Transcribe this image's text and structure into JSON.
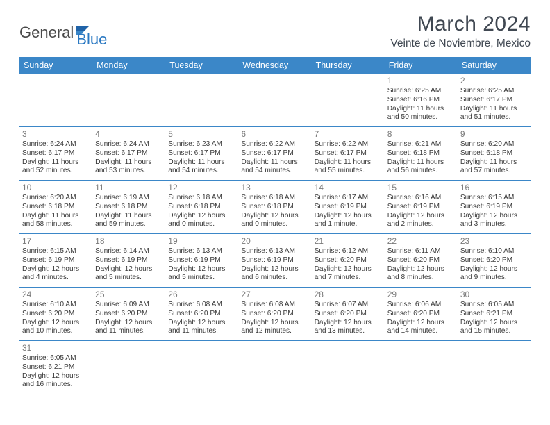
{
  "logo": {
    "text1": "General",
    "text2": "Blue"
  },
  "title": "March 2024",
  "location": "Veinte de Noviembre, Mexico",
  "colors": {
    "header_bg": "#3b87c8",
    "header_text": "#ffffff",
    "accent": "#2a78c2",
    "text_dark": "#404852",
    "cell_text": "#3a3a3a",
    "day_num": "#7a7a7a",
    "background": "#ffffff"
  },
  "day_names": [
    "Sunday",
    "Monday",
    "Tuesday",
    "Wednesday",
    "Thursday",
    "Friday",
    "Saturday"
  ],
  "weeks": [
    [
      null,
      null,
      null,
      null,
      null,
      {
        "n": "1",
        "sr": "Sunrise: 6:25 AM",
        "ss": "Sunset: 6:16 PM",
        "d1": "Daylight: 11 hours",
        "d2": "and 50 minutes."
      },
      {
        "n": "2",
        "sr": "Sunrise: 6:25 AM",
        "ss": "Sunset: 6:17 PM",
        "d1": "Daylight: 11 hours",
        "d2": "and 51 minutes."
      }
    ],
    [
      {
        "n": "3",
        "sr": "Sunrise: 6:24 AM",
        "ss": "Sunset: 6:17 PM",
        "d1": "Daylight: 11 hours",
        "d2": "and 52 minutes."
      },
      {
        "n": "4",
        "sr": "Sunrise: 6:24 AM",
        "ss": "Sunset: 6:17 PM",
        "d1": "Daylight: 11 hours",
        "d2": "and 53 minutes."
      },
      {
        "n": "5",
        "sr": "Sunrise: 6:23 AM",
        "ss": "Sunset: 6:17 PM",
        "d1": "Daylight: 11 hours",
        "d2": "and 54 minutes."
      },
      {
        "n": "6",
        "sr": "Sunrise: 6:22 AM",
        "ss": "Sunset: 6:17 PM",
        "d1": "Daylight: 11 hours",
        "d2": "and 54 minutes."
      },
      {
        "n": "7",
        "sr": "Sunrise: 6:22 AM",
        "ss": "Sunset: 6:17 PM",
        "d1": "Daylight: 11 hours",
        "d2": "and 55 minutes."
      },
      {
        "n": "8",
        "sr": "Sunrise: 6:21 AM",
        "ss": "Sunset: 6:18 PM",
        "d1": "Daylight: 11 hours",
        "d2": "and 56 minutes."
      },
      {
        "n": "9",
        "sr": "Sunrise: 6:20 AM",
        "ss": "Sunset: 6:18 PM",
        "d1": "Daylight: 11 hours",
        "d2": "and 57 minutes."
      }
    ],
    [
      {
        "n": "10",
        "sr": "Sunrise: 6:20 AM",
        "ss": "Sunset: 6:18 PM",
        "d1": "Daylight: 11 hours",
        "d2": "and 58 minutes."
      },
      {
        "n": "11",
        "sr": "Sunrise: 6:19 AM",
        "ss": "Sunset: 6:18 PM",
        "d1": "Daylight: 11 hours",
        "d2": "and 59 minutes."
      },
      {
        "n": "12",
        "sr": "Sunrise: 6:18 AM",
        "ss": "Sunset: 6:18 PM",
        "d1": "Daylight: 12 hours",
        "d2": "and 0 minutes."
      },
      {
        "n": "13",
        "sr": "Sunrise: 6:18 AM",
        "ss": "Sunset: 6:18 PM",
        "d1": "Daylight: 12 hours",
        "d2": "and 0 minutes."
      },
      {
        "n": "14",
        "sr": "Sunrise: 6:17 AM",
        "ss": "Sunset: 6:19 PM",
        "d1": "Daylight: 12 hours",
        "d2": "and 1 minute."
      },
      {
        "n": "15",
        "sr": "Sunrise: 6:16 AM",
        "ss": "Sunset: 6:19 PM",
        "d1": "Daylight: 12 hours",
        "d2": "and 2 minutes."
      },
      {
        "n": "16",
        "sr": "Sunrise: 6:15 AM",
        "ss": "Sunset: 6:19 PM",
        "d1": "Daylight: 12 hours",
        "d2": "and 3 minutes."
      }
    ],
    [
      {
        "n": "17",
        "sr": "Sunrise: 6:15 AM",
        "ss": "Sunset: 6:19 PM",
        "d1": "Daylight: 12 hours",
        "d2": "and 4 minutes."
      },
      {
        "n": "18",
        "sr": "Sunrise: 6:14 AM",
        "ss": "Sunset: 6:19 PM",
        "d1": "Daylight: 12 hours",
        "d2": "and 5 minutes."
      },
      {
        "n": "19",
        "sr": "Sunrise: 6:13 AM",
        "ss": "Sunset: 6:19 PM",
        "d1": "Daylight: 12 hours",
        "d2": "and 5 minutes."
      },
      {
        "n": "20",
        "sr": "Sunrise: 6:13 AM",
        "ss": "Sunset: 6:19 PM",
        "d1": "Daylight: 12 hours",
        "d2": "and 6 minutes."
      },
      {
        "n": "21",
        "sr": "Sunrise: 6:12 AM",
        "ss": "Sunset: 6:20 PM",
        "d1": "Daylight: 12 hours",
        "d2": "and 7 minutes."
      },
      {
        "n": "22",
        "sr": "Sunrise: 6:11 AM",
        "ss": "Sunset: 6:20 PM",
        "d1": "Daylight: 12 hours",
        "d2": "and 8 minutes."
      },
      {
        "n": "23",
        "sr": "Sunrise: 6:10 AM",
        "ss": "Sunset: 6:20 PM",
        "d1": "Daylight: 12 hours",
        "d2": "and 9 minutes."
      }
    ],
    [
      {
        "n": "24",
        "sr": "Sunrise: 6:10 AM",
        "ss": "Sunset: 6:20 PM",
        "d1": "Daylight: 12 hours",
        "d2": "and 10 minutes."
      },
      {
        "n": "25",
        "sr": "Sunrise: 6:09 AM",
        "ss": "Sunset: 6:20 PM",
        "d1": "Daylight: 12 hours",
        "d2": "and 11 minutes."
      },
      {
        "n": "26",
        "sr": "Sunrise: 6:08 AM",
        "ss": "Sunset: 6:20 PM",
        "d1": "Daylight: 12 hours",
        "d2": "and 11 minutes."
      },
      {
        "n": "27",
        "sr": "Sunrise: 6:08 AM",
        "ss": "Sunset: 6:20 PM",
        "d1": "Daylight: 12 hours",
        "d2": "and 12 minutes."
      },
      {
        "n": "28",
        "sr": "Sunrise: 6:07 AM",
        "ss": "Sunset: 6:20 PM",
        "d1": "Daylight: 12 hours",
        "d2": "and 13 minutes."
      },
      {
        "n": "29",
        "sr": "Sunrise: 6:06 AM",
        "ss": "Sunset: 6:20 PM",
        "d1": "Daylight: 12 hours",
        "d2": "and 14 minutes."
      },
      {
        "n": "30",
        "sr": "Sunrise: 6:05 AM",
        "ss": "Sunset: 6:21 PM",
        "d1": "Daylight: 12 hours",
        "d2": "and 15 minutes."
      }
    ],
    [
      {
        "n": "31",
        "sr": "Sunrise: 6:05 AM",
        "ss": "Sunset: 6:21 PM",
        "d1": "Daylight: 12 hours",
        "d2": "and 16 minutes."
      },
      null,
      null,
      null,
      null,
      null,
      null
    ]
  ]
}
